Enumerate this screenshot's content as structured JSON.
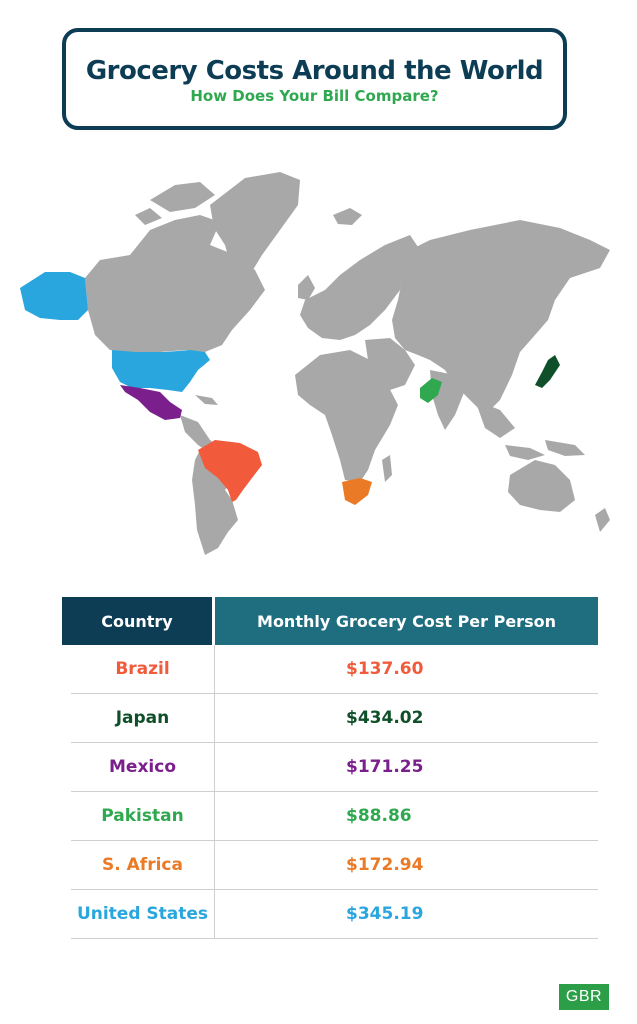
{
  "header": {
    "title": "Grocery Costs Around the World",
    "subtitle": "How Does Your Bill Compare?"
  },
  "table": {
    "columns": [
      "Country",
      "Monthly Grocery Cost Per Person"
    ],
    "rows": [
      {
        "country": "Brazil",
        "cost": "$137.60",
        "color": "#f15a3b"
      },
      {
        "country": "Japan",
        "cost": "$434.02",
        "color": "#0f4f2a"
      },
      {
        "country": "Mexico",
        "cost": "$171.25",
        "color": "#7a1f8c"
      },
      {
        "country": "Pakistan",
        "cost": "$88.86",
        "color": "#2fa84f"
      },
      {
        "country": "S. Africa",
        "cost": "$172.94",
        "color": "#ea7a25"
      },
      {
        "country": "United States",
        "cost": "$345.19",
        "color": "#2aa6df"
      }
    ]
  },
  "map": {
    "base_color": "#a8a8a8",
    "highlight_colors": {
      "united_states": "#2aa6df",
      "mexico": "#7a1f8c",
      "brazil": "#f15a3b",
      "south_africa": "#ea7a25",
      "pakistan": "#2fa84f",
      "japan": "#0f4f2a"
    }
  },
  "logo": {
    "text": "GBR"
  }
}
